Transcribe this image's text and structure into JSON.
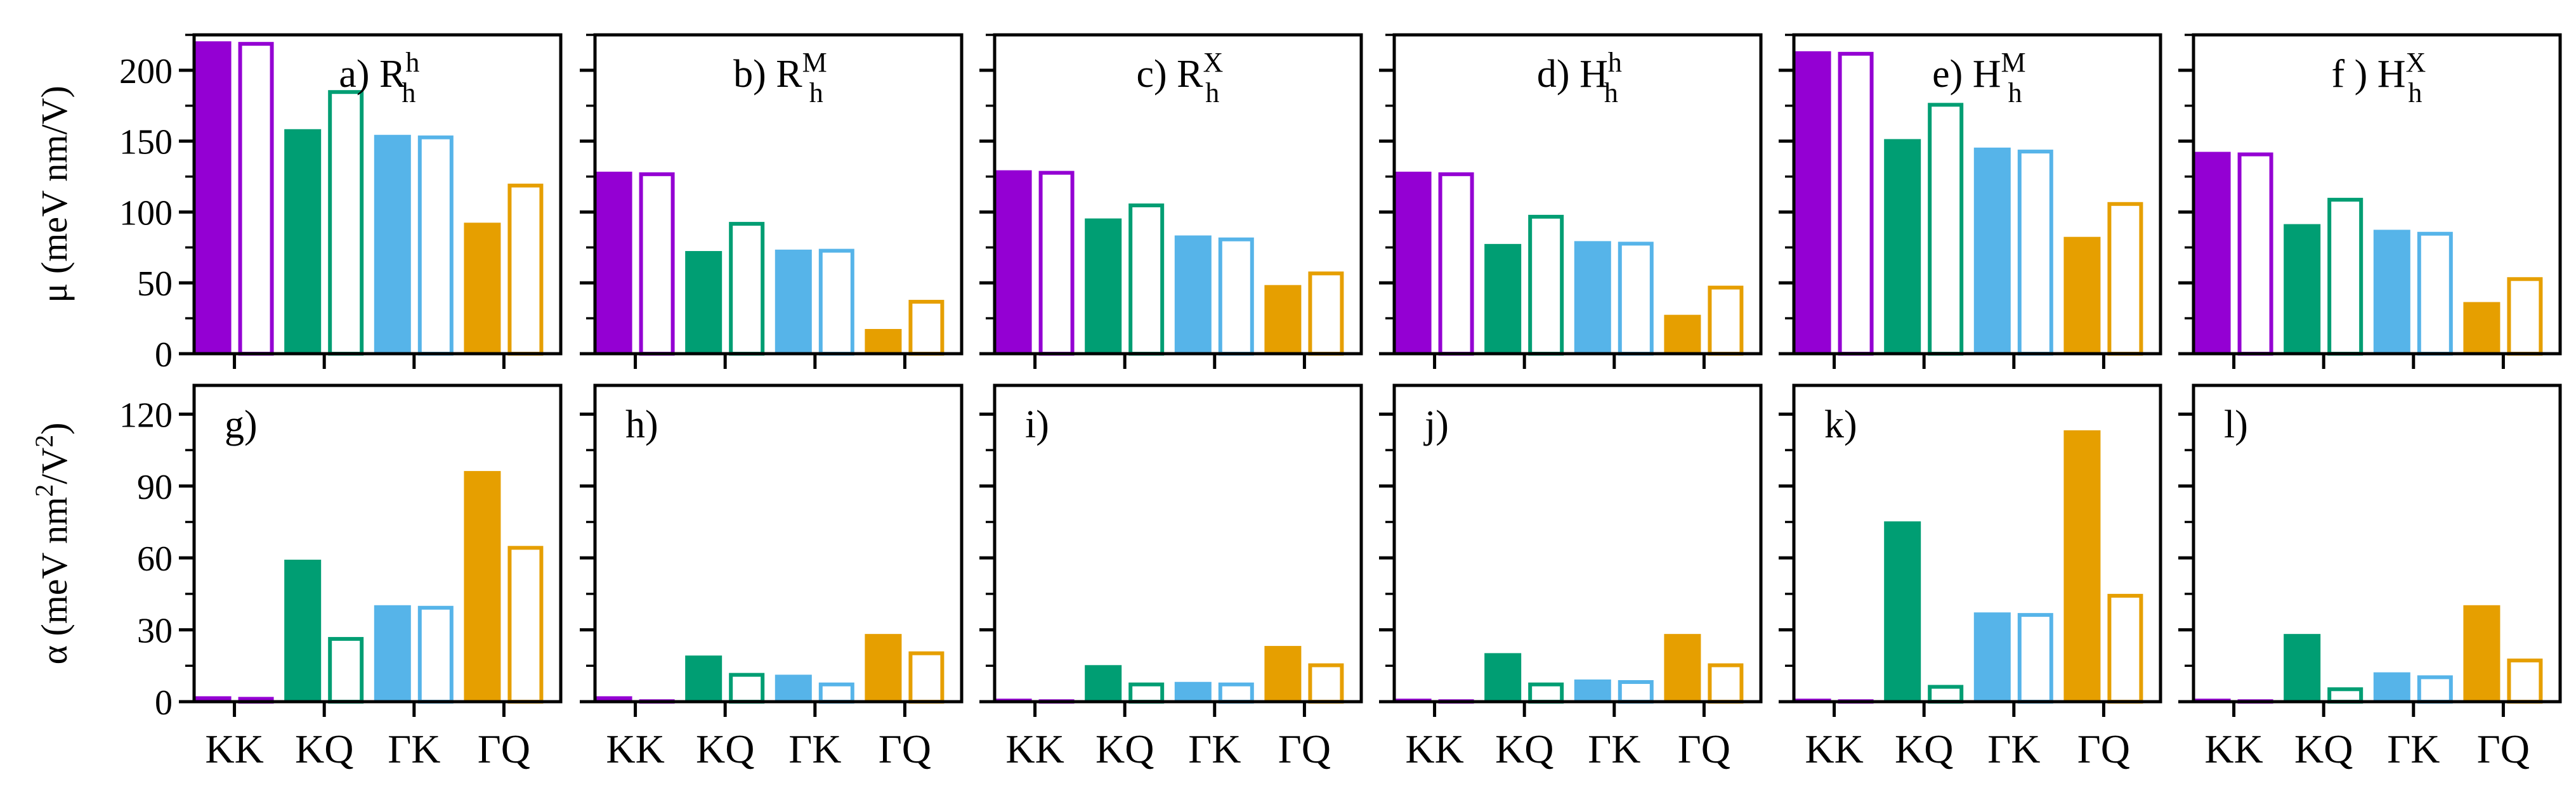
{
  "chart_data": {
    "type": "bar",
    "layout": "2 rows x 6 columns of small multiples, y axes shared within each row",
    "categories": [
      "KK",
      "KQ",
      "ΓK",
      "ΓQ"
    ],
    "bar_styles": [
      "filled",
      "hollow"
    ],
    "colors": {
      "KK": "#9400D3",
      "KQ": "#009E73",
      "ΓK": "#56B4E9",
      "ΓQ": "#E69F00"
    },
    "rows": [
      {
        "ylabel": {
          "main": "μ (meV nm/V)",
          "sup": ""
        },
        "ylim": [
          0,
          225
        ],
        "yticks": [
          0,
          50,
          100,
          150,
          200
        ],
        "panels": [
          {
            "label": "a) R",
            "label_sup": "h",
            "label_sub": "h",
            "filled": [
              220,
              158,
              154,
              92
            ],
            "hollow": [
              220,
              186,
              154,
              120
            ]
          },
          {
            "label": "b) R",
            "label_sup": "M",
            "label_sub": "h",
            "filled": [
              128,
              72,
              73,
              17
            ],
            "hollow": [
              128,
              93,
              74,
              38
            ]
          },
          {
            "label": "c) R",
            "label_sup": "X",
            "label_sub": "h",
            "filled": [
              129,
              95,
              83,
              48
            ],
            "hollow": [
              129,
              106,
              82,
              58
            ]
          },
          {
            "label": "d) H",
            "label_sup": "h",
            "label_sub": "h",
            "filled": [
              128,
              77,
              79,
              27
            ],
            "hollow": [
              128,
              98,
              79,
              48
            ]
          },
          {
            "label": "e) H",
            "label_sup": "M",
            "label_sub": "h",
            "filled": [
              213,
              151,
              145,
              82
            ],
            "hollow": [
              213,
              177,
              144,
              107
            ]
          },
          {
            "label": "f ) H",
            "label_sup": "X",
            "label_sub": "h",
            "filled": [
              142,
              91,
              87,
              36
            ],
            "hollow": [
              142,
              110,
              86,
              54
            ]
          }
        ]
      },
      {
        "ylabel": {
          "main": "α (meV nm",
          "sup": "2",
          "mid": "/V",
          "sup2": "2",
          "end": ")"
        },
        "ylim": [
          0,
          132
        ],
        "yticks": [
          0,
          30,
          60,
          90,
          120
        ],
        "panels": [
          {
            "label": "g)",
            "filled": [
              2,
              59,
              40,
              96
            ],
            "hollow": [
              2,
              27,
              40,
              65
            ]
          },
          {
            "label": "h)",
            "filled": [
              2,
              19,
              11,
              28
            ],
            "hollow": [
              1,
              12,
              8,
              21
            ]
          },
          {
            "label": "i)",
            "filled": [
              1,
              15,
              8,
              23
            ],
            "hollow": [
              1,
              8,
              8,
              16
            ]
          },
          {
            "label": "j)",
            "filled": [
              1,
              20,
              9,
              28
            ],
            "hollow": [
              1,
              8,
              9,
              16
            ]
          },
          {
            "label": "k)",
            "filled": [
              1,
              75,
              37,
              113
            ],
            "hollow": [
              1,
              7,
              37,
              45
            ]
          },
          {
            "label": "l)",
            "filled": [
              1,
              28,
              12,
              40
            ],
            "hollow": [
              1,
              6,
              11,
              18
            ]
          }
        ]
      }
    ]
  }
}
